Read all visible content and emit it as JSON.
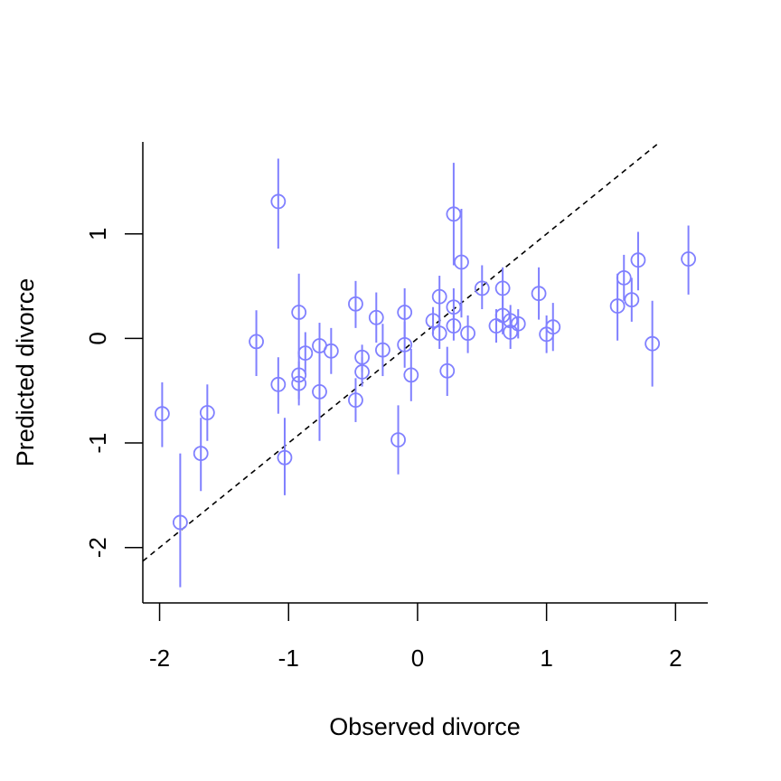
{
  "chart_data": {
    "type": "scatter",
    "title": "",
    "xlabel": "Observed divorce",
    "ylabel": "Predicted divorce",
    "xlim": [
      -2.13,
      2.25
    ],
    "ylim": [
      -2.53,
      1.88
    ],
    "x_ticks": [
      -2,
      -1,
      0,
      1,
      2
    ],
    "y_ticks": [
      -2,
      -1,
      0,
      1
    ],
    "x_tick_labels": [
      "-2",
      "-1",
      "0",
      "1",
      "2"
    ],
    "y_tick_labels": [
      "-2",
      "-1",
      "0",
      "1"
    ],
    "grid": false,
    "legend": "none",
    "point_color": "#8080ff",
    "reference_line": {
      "intercept": 0,
      "slope": 1,
      "style": "dashed",
      "color": "#000000"
    },
    "points": [
      {
        "x": -1.98,
        "y": -0.72,
        "lo": -1.04,
        "hi": -0.42
      },
      {
        "x": -1.68,
        "y": -1.1,
        "lo": -1.46,
        "hi": -0.76
      },
      {
        "x": -1.63,
        "y": -0.71,
        "lo": -0.98,
        "hi": -0.44
      },
      {
        "x": -1.84,
        "y": -1.76,
        "lo": -2.38,
        "hi": -1.1
      },
      {
        "x": -1.25,
        "y": -0.03,
        "lo": -0.36,
        "hi": 0.27
      },
      {
        "x": -1.08,
        "y": 1.31,
        "lo": 0.86,
        "hi": 1.72
      },
      {
        "x": -1.08,
        "y": -0.44,
        "lo": -0.72,
        "hi": -0.18
      },
      {
        "x": -1.03,
        "y": -1.14,
        "lo": -1.5,
        "hi": -0.76
      },
      {
        "x": -0.92,
        "y": 0.25,
        "lo": -0.18,
        "hi": 0.62
      },
      {
        "x": -0.92,
        "y": -0.35,
        "lo": -0.58,
        "hi": -0.12
      },
      {
        "x": -0.92,
        "y": -0.43,
        "lo": -0.64,
        "hi": -0.22
      },
      {
        "x": -0.87,
        "y": -0.14,
        "lo": -0.34,
        "hi": 0.06
      },
      {
        "x": -0.76,
        "y": -0.07,
        "lo": -0.38,
        "hi": 0.15
      },
      {
        "x": -0.76,
        "y": -0.51,
        "lo": -0.98,
        "hi": -0.08
      },
      {
        "x": -0.67,
        "y": -0.12,
        "lo": -0.34,
        "hi": 0.1
      },
      {
        "x": -0.48,
        "y": 0.33,
        "lo": 0.1,
        "hi": 0.55
      },
      {
        "x": -0.48,
        "y": -0.59,
        "lo": -0.8,
        "hi": -0.38
      },
      {
        "x": -0.43,
        "y": -0.18,
        "lo": -0.32,
        "hi": -0.06
      },
      {
        "x": -0.43,
        "y": -0.32,
        "lo": -0.46,
        "hi": -0.18
      },
      {
        "x": -0.32,
        "y": 0.2,
        "lo": -0.04,
        "hi": 0.44
      },
      {
        "x": -0.27,
        "y": -0.11,
        "lo": -0.36,
        "hi": 0.14
      },
      {
        "x": -0.15,
        "y": -0.97,
        "lo": -1.3,
        "hi": -0.64
      },
      {
        "x": -0.1,
        "y": 0.25,
        "lo": 0.0,
        "hi": 0.48
      },
      {
        "x": -0.1,
        "y": -0.06,
        "lo": -0.28,
        "hi": 0.16
      },
      {
        "x": -0.05,
        "y": -0.35,
        "lo": -0.6,
        "hi": -0.1
      },
      {
        "x": 0.12,
        "y": 0.17,
        "lo": 0.04,
        "hi": 0.3
      },
      {
        "x": 0.17,
        "y": 0.4,
        "lo": 0.16,
        "hi": 0.6
      },
      {
        "x": 0.17,
        "y": 0.05,
        "lo": -0.1,
        "hi": 0.2
      },
      {
        "x": 0.23,
        "y": -0.31,
        "lo": -0.55,
        "hi": -0.08
      },
      {
        "x": 0.28,
        "y": 1.19,
        "lo": 0.7,
        "hi": 1.68
      },
      {
        "x": 0.28,
        "y": 0.3,
        "lo": 0.1,
        "hi": 0.48
      },
      {
        "x": 0.28,
        "y": 0.12,
        "lo": -0.02,
        "hi": 0.26
      },
      {
        "x": 0.34,
        "y": 0.73,
        "lo": 0.2,
        "hi": 1.24
      },
      {
        "x": 0.39,
        "y": 0.05,
        "lo": -0.14,
        "hi": 0.22
      },
      {
        "x": 0.5,
        "y": 0.48,
        "lo": 0.28,
        "hi": 0.7
      },
      {
        "x": 0.61,
        "y": 0.12,
        "lo": -0.04,
        "hi": 0.28
      },
      {
        "x": 0.66,
        "y": 0.48,
        "lo": 0.26,
        "hi": 0.68
      },
      {
        "x": 0.66,
        "y": 0.22,
        "lo": 0.04,
        "hi": 0.4
      },
      {
        "x": 0.72,
        "y": 0.17,
        "lo": 0.02,
        "hi": 0.32
      },
      {
        "x": 0.72,
        "y": 0.06,
        "lo": -0.1,
        "hi": 0.22
      },
      {
        "x": 0.78,
        "y": 0.14,
        "lo": 0.0,
        "hi": 0.28
      },
      {
        "x": 0.94,
        "y": 0.43,
        "lo": 0.18,
        "hi": 0.68
      },
      {
        "x": 1.0,
        "y": 0.04,
        "lo": -0.14,
        "hi": 0.22
      },
      {
        "x": 1.05,
        "y": 0.11,
        "lo": -0.12,
        "hi": 0.34
      },
      {
        "x": 1.55,
        "y": 0.31,
        "lo": -0.02,
        "hi": 0.62
      },
      {
        "x": 1.6,
        "y": 0.58,
        "lo": 0.36,
        "hi": 0.8
      },
      {
        "x": 1.66,
        "y": 0.37,
        "lo": 0.16,
        "hi": 0.58
      },
      {
        "x": 1.71,
        "y": 0.75,
        "lo": 0.46,
        "hi": 1.02
      },
      {
        "x": 1.82,
        "y": -0.05,
        "lo": -0.46,
        "hi": 0.36
      },
      {
        "x": 2.1,
        "y": 0.76,
        "lo": 0.42,
        "hi": 1.08
      }
    ]
  }
}
